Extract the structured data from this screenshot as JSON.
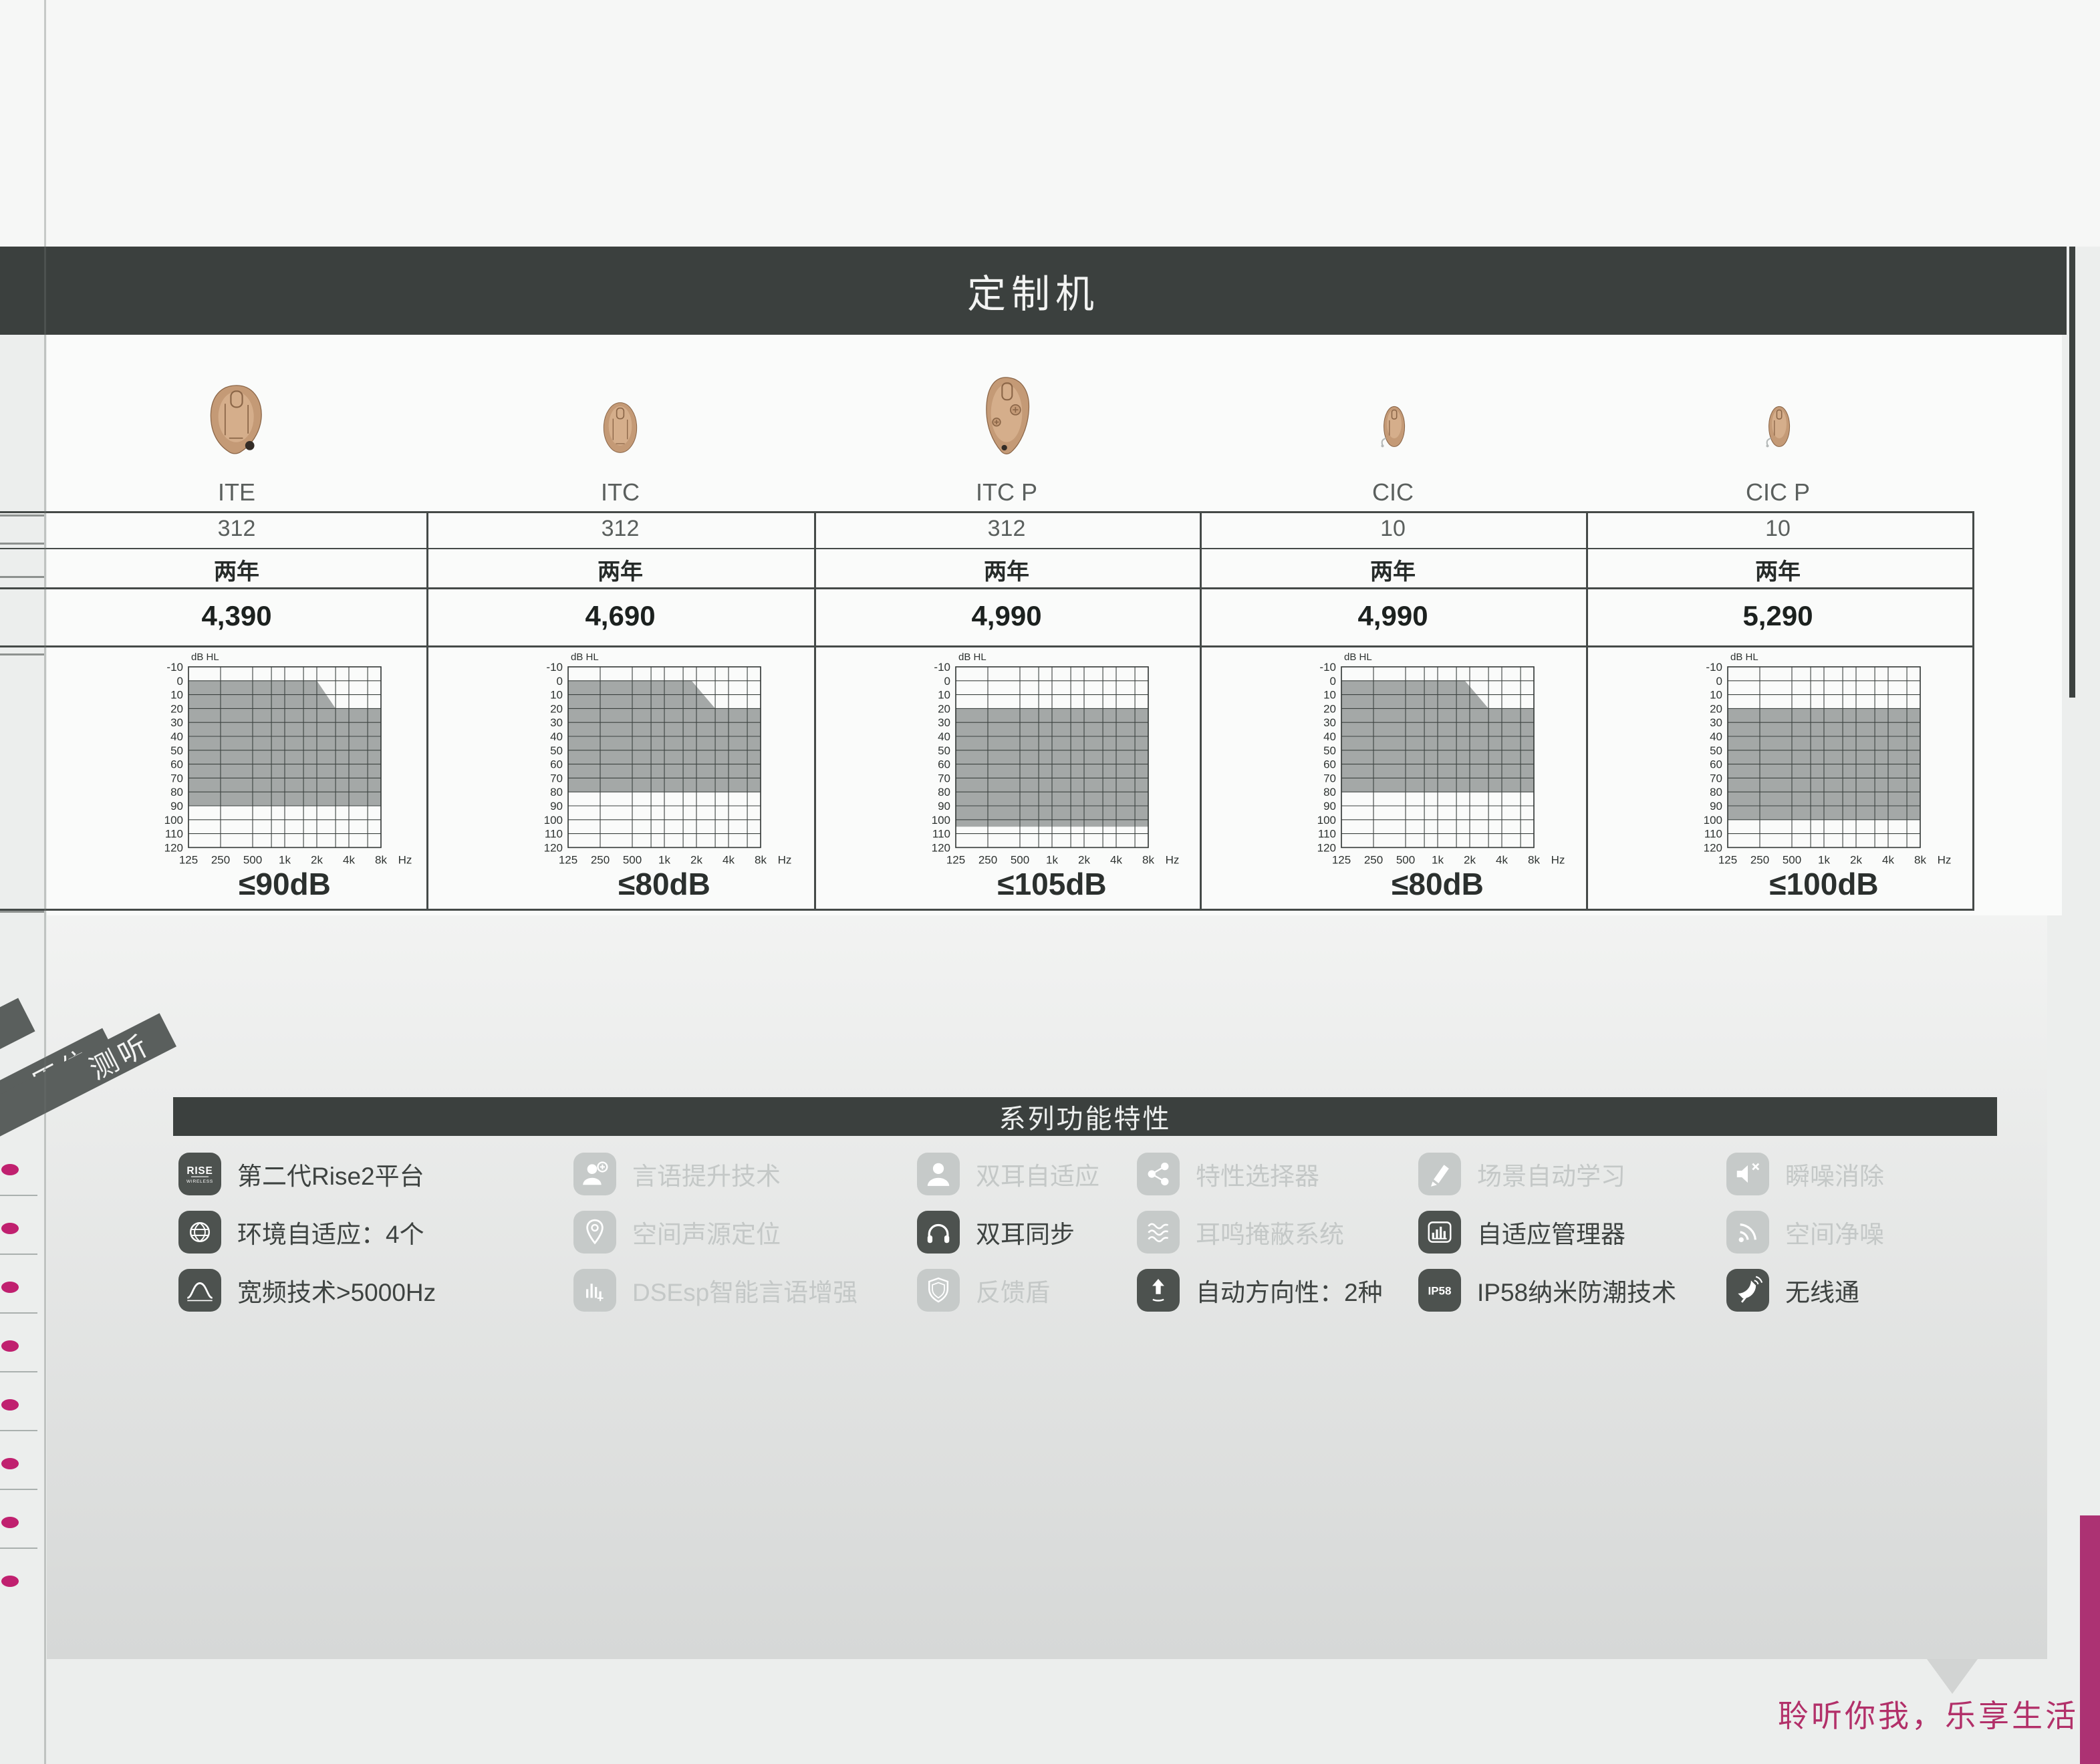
{
  "page": {
    "title": "定制机",
    "side_tabs": [
      "原位",
      "测听"
    ],
    "footer_slogan": "聆听你我，乐享生活"
  },
  "table": {
    "products": [
      {
        "name": "ITE",
        "battery": "312",
        "warranty": "两年",
        "price": "4,390",
        "fitting_range": "≤90dB"
      },
      {
        "name": "ITC",
        "battery": "312",
        "warranty": "两年",
        "price": "4,690",
        "fitting_range": "≤80dB"
      },
      {
        "name": "ITC P",
        "battery": "312",
        "warranty": "两年",
        "price": "4,990",
        "fitting_range": "≤105dB"
      },
      {
        "name": "CIC",
        "battery": "10",
        "warranty": "两年",
        "price": "4,990",
        "fitting_range": "≤80dB"
      },
      {
        "name": "CIC P",
        "battery": "10",
        "warranty": "两年",
        "price": "5,290",
        "fitting_range": "≤100dB"
      }
    ]
  },
  "chart_data": [
    {
      "type": "area",
      "product": "ITE",
      "fitting_range_label": "≤90dB",
      "y_axis_unit": "dB HL",
      "x_axis_unit": "Hz",
      "x_ticks": [
        "125",
        "250",
        "500",
        "1k",
        "2k",
        "4k",
        "8k"
      ],
      "y_ticks": [
        "-10",
        "0",
        "10",
        "20",
        "30",
        "40",
        "50",
        "60",
        "70",
        "80",
        "90",
        "100",
        "110",
        "120"
      ],
      "ylim": [
        -10,
        120
      ],
      "region_db_by_freq": [
        [
          125,
          0
        ],
        [
          2000,
          0
        ],
        [
          3000,
          20
        ],
        [
          8000,
          20
        ],
        [
          8000,
          90
        ],
        [
          125,
          90
        ]
      ]
    },
    {
      "type": "area",
      "product": "ITC",
      "fitting_range_label": "≤80dB",
      "y_axis_unit": "dB HL",
      "x_axis_unit": "Hz",
      "x_ticks": [
        "125",
        "250",
        "500",
        "1k",
        "2k",
        "4k",
        "8k"
      ],
      "y_ticks": [
        "-10",
        "0",
        "10",
        "20",
        "30",
        "40",
        "50",
        "60",
        "70",
        "80",
        "90",
        "100",
        "110",
        "120"
      ],
      "ylim": [
        -10,
        120
      ],
      "region_db_by_freq": [
        [
          125,
          0
        ],
        [
          1800,
          0
        ],
        [
          3000,
          20
        ],
        [
          8000,
          20
        ],
        [
          8000,
          80
        ],
        [
          125,
          80
        ]
      ]
    },
    {
      "type": "area",
      "product": "ITC P",
      "fitting_range_label": "≤105dB",
      "y_axis_unit": "dB HL",
      "x_axis_unit": "Hz",
      "x_ticks": [
        "125",
        "250",
        "500",
        "1k",
        "2k",
        "4k",
        "8k"
      ],
      "y_ticks": [
        "-10",
        "0",
        "10",
        "20",
        "30",
        "40",
        "50",
        "60",
        "70",
        "80",
        "90",
        "100",
        "110",
        "120"
      ],
      "ylim": [
        -10,
        120
      ],
      "region_db_by_freq": [
        [
          125,
          20
        ],
        [
          8000,
          20
        ],
        [
          8000,
          105
        ],
        [
          125,
          105
        ]
      ]
    },
    {
      "type": "area",
      "product": "CIC",
      "fitting_range_label": "≤80dB",
      "y_axis_unit": "dB HL",
      "x_axis_unit": "Hz",
      "x_ticks": [
        "125",
        "250",
        "500",
        "1k",
        "2k",
        "4k",
        "8k"
      ],
      "y_ticks": [
        "-10",
        "0",
        "10",
        "20",
        "30",
        "40",
        "50",
        "60",
        "70",
        "80",
        "90",
        "100",
        "110",
        "120"
      ],
      "ylim": [
        -10,
        120
      ],
      "region_db_by_freq": [
        [
          125,
          0
        ],
        [
          1800,
          0
        ],
        [
          3000,
          20
        ],
        [
          8000,
          20
        ],
        [
          8000,
          80
        ],
        [
          125,
          80
        ]
      ]
    },
    {
      "type": "area",
      "product": "CIC P",
      "fitting_range_label": "≤100dB",
      "y_axis_unit": "dB HL",
      "x_axis_unit": "Hz",
      "x_ticks": [
        "125",
        "250",
        "500",
        "1k",
        "2k",
        "4k",
        "8k"
      ],
      "y_ticks": [
        "-10",
        "0",
        "10",
        "20",
        "30",
        "40",
        "50",
        "60",
        "70",
        "80",
        "90",
        "100",
        "110",
        "120"
      ],
      "ylim": [
        -10,
        120
      ],
      "region_db_by_freq": [
        [
          125,
          20
        ],
        [
          8000,
          20
        ],
        [
          8000,
          100
        ],
        [
          125,
          100
        ]
      ]
    }
  ],
  "features": {
    "title": "系列功能特性",
    "items": [
      {
        "label": "第二代Rise2平台",
        "icon": "rise-wireless-badge",
        "enabled": true
      },
      {
        "label": "言语提升技术",
        "icon": "person-plus-icon",
        "enabled": false
      },
      {
        "label": "双耳自适应",
        "icon": "person-icon",
        "enabled": false
      },
      {
        "label": "特性选择器",
        "icon": "share-nodes-icon",
        "enabled": false
      },
      {
        "label": "场景自动学习",
        "icon": "pencil-icon",
        "enabled": false
      },
      {
        "label": "瞬噪消除",
        "icon": "speaker-mute-icon",
        "enabled": false
      },
      {
        "label": "环境自适应：4个",
        "icon": "globe-icon",
        "enabled": true
      },
      {
        "label": "空间声源定位",
        "icon": "location-pin-icon",
        "enabled": false
      },
      {
        "label": "双耳同步",
        "icon": "headphones-icon",
        "enabled": true
      },
      {
        "label": "耳鸣掩蔽系统",
        "icon": "waves-icon",
        "enabled": false
      },
      {
        "label": "自适应管理器",
        "icon": "bar-chart-icon",
        "enabled": true
      },
      {
        "label": "空间净噪",
        "icon": "signal-icon",
        "enabled": false
      },
      {
        "label": "宽频技术>5000Hz",
        "icon": "bell-curve-icon",
        "enabled": true
      },
      {
        "label": "DSEsp智能言语增强",
        "icon": "equalizer-icon",
        "enabled": false
      },
      {
        "label": "反馈盾",
        "icon": "shield-icon",
        "enabled": false
      },
      {
        "label": "自动方向性：2种",
        "icon": "arrow-up-icon",
        "enabled": true
      },
      {
        "label": "IP58纳米防潮技术",
        "icon": "ip58-badge",
        "enabled": true
      },
      {
        "label": "无线通",
        "icon": "satellite-dish-icon",
        "enabled": true
      }
    ]
  },
  "colors": {
    "title_band": "#3b403e",
    "accent_magenta": "#b23069",
    "audiogram_shade": "#9ca19f",
    "feature_enabled": "#4d524f",
    "feature_disabled": "#c6cac9",
    "hearing_aid_tan": "#c49a76"
  }
}
